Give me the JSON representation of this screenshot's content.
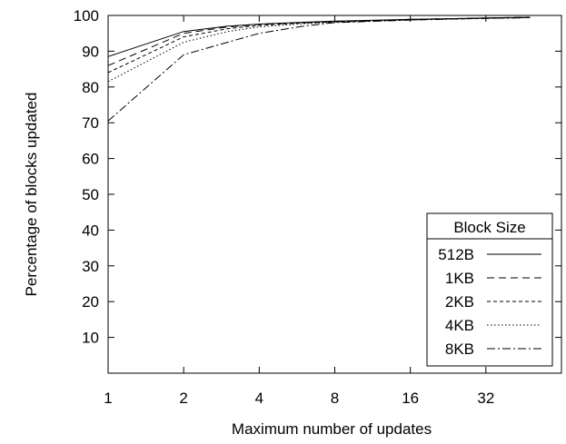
{
  "chart_data": {
    "type": "line",
    "title": "",
    "xlabel": "Maximum number of updates",
    "ylabel": "Percentage of blocks updated",
    "x_scale": "log2",
    "x_ticks": [
      1,
      2,
      4,
      8,
      16,
      32
    ],
    "x": [
      1,
      2,
      3,
      4,
      6,
      8,
      12,
      16,
      24,
      32,
      48
    ],
    "xlim": [
      1,
      64
    ],
    "ylim": [
      0,
      100
    ],
    "y_ticks": [
      10,
      20,
      30,
      40,
      50,
      60,
      70,
      80,
      90,
      100
    ],
    "grid": false,
    "legend": {
      "title": "Block Size",
      "placement": "bottom-right"
    },
    "series": [
      {
        "name": "512B",
        "dash": "",
        "values": [
          88.5,
          95.5,
          97.0,
          97.6,
          98.1,
          98.4,
          98.7,
          98.9,
          99.1,
          99.3,
          99.5
        ]
      },
      {
        "name": "1KB",
        "dash": "8,5",
        "values": [
          86.0,
          95.0,
          96.8,
          97.5,
          98.0,
          98.3,
          98.6,
          98.9,
          99.1,
          99.3,
          99.5
        ]
      },
      {
        "name": "2KB",
        "dash": "4,3",
        "values": [
          84.0,
          94.0,
          96.3,
          97.2,
          97.9,
          98.2,
          98.5,
          98.8,
          99.0,
          99.2,
          99.4
        ]
      },
      {
        "name": "4KB",
        "dash": "1.5,2.5",
        "values": [
          81.5,
          92.5,
          95.5,
          96.8,
          97.7,
          98.1,
          98.5,
          98.7,
          99.0,
          99.2,
          99.4
        ]
      },
      {
        "name": "8KB",
        "dash": "9,3,2,3",
        "values": [
          70.5,
          89.0,
          92.5,
          95.0,
          97.0,
          98.0,
          98.4,
          98.7,
          99.0,
          99.2,
          99.4
        ]
      }
    ]
  }
}
